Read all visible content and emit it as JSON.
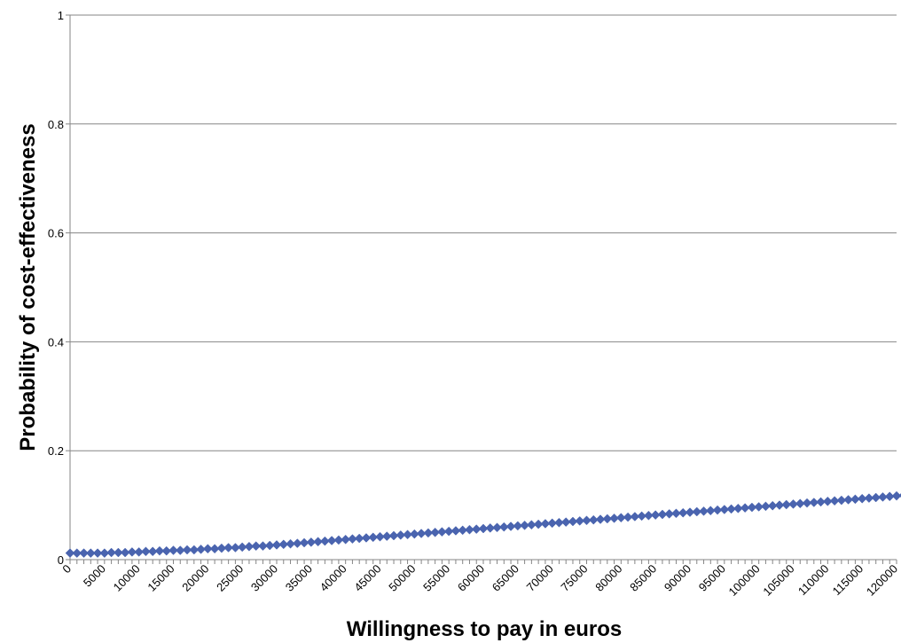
{
  "chart_data": {
    "type": "line",
    "title": "",
    "xlabel": "Willingness to pay in euros",
    "ylabel": "Probability of cost-effectiveness",
    "ylim": [
      0,
      1
    ],
    "xlim": [
      0,
      120000
    ],
    "grid": "horizontal",
    "legend": "none",
    "marker": "diamond",
    "colors": {
      "series": "#4A64AF",
      "grid": "#868686",
      "axis": "#868686"
    },
    "x_tick_step": 5000,
    "x_ticks": [
      "0",
      "5000",
      "10000",
      "15000",
      "20000",
      "25000",
      "30000",
      "35000",
      "40000",
      "45000",
      "50000",
      "55000",
      "60000",
      "65000",
      "70000",
      "75000",
      "80000",
      "85000",
      "90000",
      "95000",
      "100000",
      "105000",
      "110000",
      "115000",
      "120000"
    ],
    "y_ticks": [
      "0",
      "0.2",
      "0.4",
      "0.6",
      "0.8",
      "1"
    ],
    "point_step": 1000,
    "series": [
      {
        "values": [
          0.012,
          0.012,
          0.012,
          0.012,
          0.012,
          0.012,
          0.013,
          0.013,
          0.013,
          0.014,
          0.014,
          0.015,
          0.015,
          0.016,
          0.016,
          0.017,
          0.017,
          0.018,
          0.018,
          0.019,
          0.02,
          0.02,
          0.021,
          0.022,
          0.022,
          0.023,
          0.024,
          0.025,
          0.025,
          0.026,
          0.027,
          0.028,
          0.029,
          0.03,
          0.031,
          0.032,
          0.033,
          0.034,
          0.035,
          0.036,
          0.037,
          0.038,
          0.039,
          0.04,
          0.041,
          0.042,
          0.043,
          0.044,
          0.045,
          0.046,
          0.047,
          0.048,
          0.049,
          0.05,
          0.051,
          0.052,
          0.053,
          0.054,
          0.055,
          0.056,
          0.057,
          0.058,
          0.059,
          0.06,
          0.061,
          0.062,
          0.063,
          0.064,
          0.065,
          0.066,
          0.067,
          0.068,
          0.069,
          0.07,
          0.071,
          0.072,
          0.073,
          0.074,
          0.075,
          0.076,
          0.077,
          0.078,
          0.079,
          0.08,
          0.081,
          0.082,
          0.083,
          0.084,
          0.085,
          0.086,
          0.087,
          0.088,
          0.089,
          0.09,
          0.091,
          0.092,
          0.093,
          0.094,
          0.095,
          0.096,
          0.097,
          0.098,
          0.099,
          0.1,
          0.101,
          0.102,
          0.103,
          0.104,
          0.105,
          0.106,
          0.107,
          0.108,
          0.109,
          0.11,
          0.111,
          0.112,
          0.113,
          0.114,
          0.115,
          0.116,
          0.117,
          0.118,
          0.119,
          0.12,
          0.121,
          0.122,
          0.123
        ]
      }
    ]
  }
}
